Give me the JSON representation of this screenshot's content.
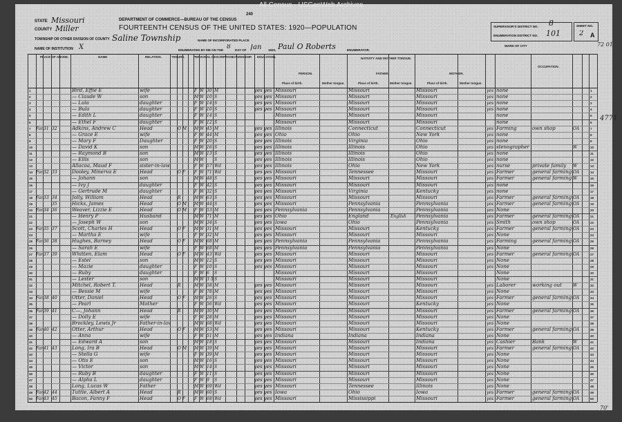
{
  "watermark": "All Census - USGenWeb Archives",
  "header": {
    "state_label": "STATE",
    "state": "Missouri",
    "county_label": "COUNTY",
    "county": "Miller",
    "township_label": "TOWNSHIP OR OTHER DIVISION OF COUNTY",
    "township": "Saline Township",
    "institution_label": "NAME OF INSTITUTION",
    "institution": "X",
    "form_number": "240",
    "department": "DEPARTMENT OF COMMERCE—BUREAU OF THE CENSUS",
    "title": "FOURTEENTH CENSUS OF THE UNITED STATES: 1920—POPULATION",
    "incorporated_place_label": "NAME OF INCORPORATED PLACE",
    "enumerated_label": "ENUMERATED BY ME ON THE",
    "enumerated_day": "8",
    "day_of_label": "DAY OF",
    "enumerated_month": "Jan",
    "year_label": "1920,",
    "enumerator": "Paul O Roberts",
    "enumerator_label": "ENUMERATOR.",
    "supervisor_label": "SUPERVISOR'S DISTRICT NO.",
    "supervisor_district": "8",
    "enumeration_label": "ENUMERATION DISTRICT NO.",
    "enumeration_district": "101",
    "sheet_label": "SHEET NO.",
    "sheet": "2",
    "sheet_side": "A",
    "ward_label": "WARD OF CITY",
    "ward_note": "72 01"
  },
  "columns": {
    "place_of_abode": "PLACE OF ABODE.",
    "name": "NAME",
    "relation": "RELATION.",
    "tenure": "TENURE.",
    "personal": "PERSONAL DESCRIPTION.",
    "citizenship": "CITIZENSHIP.",
    "education": "EDUCATION.",
    "nativity": "NATIVITY AND MOTHER TONGUE.",
    "person": "PERSON.",
    "father": "FATHER.",
    "mother": "MOTHER.",
    "place_of_birth": "Place of birth.",
    "mother_tongue": "Mother tongue.",
    "occupation": "OCCUPATION."
  },
  "rows": [
    [
      "",
      "",
      "",
      "Bird, Effie E",
      "wife",
      "",
      "F",
      "W",
      "30",
      "M",
      "yes yes",
      "Missouri",
      "",
      "Missouri",
      "Missouri",
      "yes",
      "none",
      "",
      ""
    ],
    [
      "",
      "",
      "",
      "— Claude W",
      "son",
      "",
      "M",
      "W",
      "10",
      "S",
      "yes yes",
      "Missouri",
      "",
      "Missouri",
      "Missouri",
      "yes",
      "none",
      "",
      ""
    ],
    [
      "",
      "",
      "",
      "— Lula",
      "daughter",
      "",
      "F",
      "W",
      "14",
      "S",
      "yes yes",
      "Missouri",
      "",
      "Missouri",
      "Missouri",
      "yes",
      "none",
      "",
      ""
    ],
    [
      "",
      "",
      "",
      "— Bula",
      "daughter",
      "",
      "F",
      "W",
      "10",
      "S",
      "yes yes",
      "Missouri",
      "",
      "Missouri",
      "Missouri",
      "yes",
      "none",
      "",
      ""
    ],
    [
      "",
      "",
      "",
      "— Edith L",
      "daughter",
      "",
      "F",
      "W",
      "14",
      "S",
      "",
      "Missouri",
      "",
      "Missouri",
      "Missouri",
      "",
      "none",
      "",
      ""
    ],
    [
      "",
      "",
      "",
      "— Ethel F",
      "daughter",
      "",
      "F",
      "W",
      "12",
      "S",
      "",
      "Missouri",
      "",
      "Missouri",
      "Missouri",
      "",
      "none",
      "",
      ""
    ],
    [
      "Farm",
      "31",
      "32",
      "Adkins, Andrew C",
      "Head",
      "O M",
      "M",
      "W",
      "45",
      "M",
      "yes yes",
      "Illinois",
      "",
      "Connecticut",
      "Connecticut",
      "yes",
      "Farming",
      "own shop",
      "OA"
    ],
    [
      "",
      "",
      "",
      "— Grace E",
      "wife",
      "",
      "F",
      "W",
      "44",
      "M",
      "yes yes",
      "Ohio",
      "",
      "Ohio",
      "New York",
      "yes",
      "none",
      "",
      ""
    ],
    [
      "",
      "",
      "",
      "— Mary F",
      "Daughter",
      "",
      "F",
      "W",
      "20",
      "S",
      "yes yes",
      "Illinois",
      "",
      "Virginia",
      "Ohio",
      "yes",
      "none",
      "",
      ""
    ],
    [
      "",
      "",
      "",
      "— David K",
      "son",
      "",
      "M",
      "W",
      "16",
      "S",
      "yes yes",
      "Illinois",
      "",
      "Illinois",
      "Ohio",
      "yes",
      "stenographer",
      "",
      "W"
    ],
    [
      "",
      "",
      "",
      "— Raymond B",
      "son",
      "",
      "M",
      "W",
      "13",
      "S",
      "yes yes",
      "Illinois",
      "",
      "Illinois",
      "Ohio",
      "yes",
      "none",
      "",
      ""
    ],
    [
      "",
      "",
      "",
      "— Ellis",
      "son",
      "",
      "M",
      "W",
      "",
      "S",
      "yes yes",
      "Illinois",
      "",
      "Illinois",
      "Ohio",
      "yes",
      "none",
      "",
      ""
    ],
    [
      "",
      "",
      "",
      "Allacoa, Maud F",
      "sister-in-law",
      "",
      "F",
      "W",
      "57",
      "Wd",
      "yes yes",
      "Illinois",
      "",
      "Ohio",
      "New York",
      "yes",
      "nurse",
      "private family",
      "W"
    ],
    [
      "Farm",
      "32",
      "33",
      "Dooley, Minerva E",
      "Head",
      "O F",
      "F",
      "W",
      "71",
      "Wd",
      "yes yes",
      "Missouri",
      "",
      "Tennessee",
      "Missouri",
      "yes",
      "Farmer",
      "general farming",
      "OA"
    ],
    [
      "",
      "",
      "",
      "— Johann",
      "son",
      "",
      "M",
      "W",
      "48",
      "S",
      "yes yes",
      "Missouri",
      "",
      "Missouri",
      "Missouri",
      "yes",
      "Farmer",
      "general farming",
      "W"
    ],
    [
      "",
      "",
      "",
      "— Ivy J",
      "daughter",
      "",
      "F",
      "W",
      "42",
      "S",
      "yes yes",
      "Missouri",
      "",
      "Missouri",
      "Missouri",
      "yes",
      "none",
      "",
      ""
    ],
    [
      "",
      "",
      "",
      "— Gertrude M",
      "daughter",
      "",
      "F",
      "W",
      "32",
      "S",
      "yes yes",
      "Missouri",
      "",
      "Virginia",
      "Kentucky",
      "yes",
      "none",
      "",
      ""
    ],
    [
      "Farm",
      "33",
      "34",
      "Jolly, William",
      "Head",
      "R",
      "M",
      "W",
      "63",
      "S",
      "yes yes",
      "Missouri",
      "",
      "Missouri",
      "Missouri",
      "yes",
      "Farmer",
      "general farming",
      "OA"
    ],
    [
      "",
      "",
      "35",
      "Hicks, James",
      "Head",
      "O M",
      "M",
      "W",
      "44",
      "S",
      "yes yes",
      "Missouri",
      "",
      "Pennsylvania",
      "Pennsylvania",
      "yes",
      "Farmer",
      "general farming",
      "OA"
    ],
    [
      "Farm",
      "34",
      "36",
      "Weaver, Lizzie E",
      "Head",
      "O M",
      "F",
      "W",
      "53",
      "M",
      "yes yes",
      "Pennsylvania",
      "",
      "Pennsylvania",
      "Pennsylvania",
      "yes",
      "None",
      "",
      ""
    ],
    [
      "",
      "",
      "",
      "— Henry P",
      "Husband",
      "",
      "M",
      "W",
      "71",
      "M",
      "yes yes",
      "Ohio",
      "",
      "England",
      "Pennsylvania",
      "yes",
      "Farmer",
      "general farming",
      "OA"
    ],
    [
      "",
      "",
      "",
      "— Joseph W",
      "son",
      "",
      "M",
      "W",
      "34",
      "S",
      "yes yes",
      "Iowa",
      "",
      "Ohio",
      "Pennsylvania",
      "yes",
      "Smith",
      "own shop",
      "OA"
    ],
    [
      "Farm",
      "35",
      "37",
      "Scott, Charles H",
      "Head",
      "O F",
      "M",
      "W",
      "31",
      "M",
      "yes yes",
      "Missouri",
      "",
      "Missouri",
      "Kentucky",
      "yes",
      "Farmer",
      "general farming",
      "OA"
    ],
    [
      "",
      "",
      "",
      "— Martha E",
      "wife",
      "",
      "F",
      "W",
      "32",
      "M",
      "yes yes",
      "Missouri",
      "",
      "Missouri",
      "Missouri",
      "yes",
      "None",
      "",
      ""
    ],
    [
      "Farm",
      "36",
      "38",
      "Hughes, Barney",
      "Head",
      "O F",
      "M",
      "W",
      "68",
      "M",
      "yes yes",
      "Pennsylvania",
      "",
      "Pennsylvania",
      "Pennsylvania",
      "yes",
      "Farming",
      "general farming",
      "OA"
    ],
    [
      "",
      "",
      "",
      "— Sarah E",
      "wife",
      "",
      "F",
      "W",
      "68",
      "M",
      "yes yes",
      "Pennsylvania",
      "",
      "Pennsylvania",
      "Pennsylvania",
      "yes",
      "None",
      "",
      ""
    ],
    [
      "Farm",
      "37",
      "39",
      "Whitten, Elam",
      "Head",
      "O F",
      "M",
      "W",
      "43",
      "Wd",
      "yes yes",
      "Missouri",
      "",
      "Missouri",
      "Missouri",
      "yes",
      "Farmer",
      "general farming",
      "OA"
    ],
    [
      "",
      "",
      "",
      "— Estel",
      "son",
      "",
      "M",
      "W",
      "12",
      "S",
      "yes yes",
      "Missouri",
      "",
      "Missouri",
      "Missouri",
      "yes",
      "None",
      "",
      ""
    ],
    [
      "",
      "",
      "",
      "— Mazie",
      "daughter",
      "",
      "F",
      "W",
      "10",
      "S",
      "yes yes",
      "Missouri",
      "",
      "Missouri",
      "Missouri",
      "yes",
      "None",
      "",
      ""
    ],
    [
      "",
      "",
      "",
      "— Ruby",
      "daughter",
      "",
      "F",
      "W",
      "6",
      "S",
      "",
      "Missouri",
      "",
      "Missouri",
      "Missouri",
      "",
      "None",
      "",
      ""
    ],
    [
      "",
      "",
      "",
      "— Lester",
      "son",
      "",
      "M",
      "W",
      "3 5/12",
      "S",
      "",
      "Missouri",
      "",
      "Missouri",
      "Missouri",
      "",
      "None",
      "",
      ""
    ],
    [
      "",
      "",
      "",
      "Mitchel, Robert T.",
      "Head",
      "R",
      "M",
      "W",
      "58",
      "M",
      "yes yes",
      "Missouri",
      "",
      "Missouri",
      "Missouri",
      "yes",
      "Laborer",
      "working out",
      "W"
    ],
    [
      "",
      "",
      "",
      "— Bessie M",
      "wife",
      "",
      "F",
      "W",
      "78",
      "M",
      "yes yes",
      "Missouri",
      "",
      "Missouri",
      "Missouri",
      "yes",
      "None",
      "",
      ""
    ],
    [
      "Farm",
      "38",
      "40",
      "Otter, Daniel",
      "Head",
      "O F",
      "M",
      "W",
      "26",
      "S",
      "yes yes",
      "Missouri",
      "",
      "Missouri",
      "Missouri",
      "yes",
      "Farmer",
      "general farming",
      "OA"
    ],
    [
      "",
      "",
      "",
      "— Pearl",
      "Mother",
      "",
      "F",
      "W",
      "56",
      "Wd",
      "yes yes",
      "Missouri",
      "",
      "Missouri",
      "Kentucky",
      "yes",
      "None",
      "",
      ""
    ],
    [
      "Farm",
      "39",
      "41",
      "C—, Johann",
      "Head",
      "R",
      "M",
      "W",
      "30",
      "M",
      "yes yes",
      "Missouri",
      "",
      "Missouri",
      "Missouri",
      "yes",
      "Farmer",
      "general farming",
      "OA"
    ],
    [
      "",
      "",
      "",
      "— Dolly E",
      "wife",
      "",
      "F",
      "W",
      "28",
      "M",
      "yes yes",
      "Missouri",
      "",
      "Missouri",
      "Missouri",
      "yes",
      "None",
      "",
      ""
    ],
    [
      "",
      "",
      "",
      "Brockley, Lewis Jr",
      "Father-in-law",
      "",
      "M",
      "W",
      "68",
      "Wd",
      "yes yes",
      "Missouri",
      "",
      "Missouri",
      "Missouri",
      "yes",
      "None",
      "",
      ""
    ],
    [
      "Farm",
      "40",
      "42",
      "Otter, Arthur",
      "Head",
      "O F",
      "M",
      "W",
      "53",
      "M",
      "yes yes",
      "Missouri",
      "",
      "Missouri",
      "Kentucky",
      "yes",
      "Farmer",
      "general farming",
      "OA"
    ],
    [
      "",
      "",
      "",
      "— Anna",
      "wife",
      "",
      "F",
      "W",
      "51",
      "M",
      "yes yes",
      "Indiana",
      "",
      "Indiana",
      "Indiana",
      "yes",
      "None",
      "",
      ""
    ],
    [
      "",
      "",
      "",
      "— Edward A",
      "son",
      "",
      "M",
      "W",
      "18",
      "S",
      "yes yes",
      "Missouri",
      "",
      "Missouri",
      "Indiana",
      "yes",
      "Cashier",
      "Bank",
      "W"
    ],
    [
      "Farm",
      "41",
      "43",
      "Long, Ira B",
      "Head",
      "O M",
      "M",
      "W",
      "39",
      "M",
      "yes yes",
      "Missouri",
      "",
      "Missouri",
      "Missouri",
      "yes",
      "Farmer",
      "general farming",
      "OA"
    ],
    [
      "",
      "",
      "",
      "— Stella G",
      "wife",
      "",
      "F",
      "W",
      "39",
      "M",
      "yes yes",
      "Missouri",
      "",
      "Missouri",
      "Missouri",
      "yes",
      "None",
      "",
      ""
    ],
    [
      "",
      "",
      "",
      "— Otis E",
      "son",
      "",
      "M",
      "W",
      "16",
      "S",
      "yes yes",
      "Missouri",
      "",
      "Missouri",
      "Missouri",
      "yes",
      "None",
      "",
      ""
    ],
    [
      "",
      "",
      "",
      "— Victor",
      "son",
      "",
      "M",
      "W",
      "14",
      "S",
      "yes yes",
      "Missouri",
      "",
      "Missouri",
      "Missouri",
      "yes",
      "None",
      "",
      ""
    ],
    [
      "",
      "",
      "",
      "— Ruby B",
      "daughter",
      "",
      "F",
      "W",
      "11",
      "S",
      "yes yes",
      "Missouri",
      "",
      "Missouri",
      "Missouri",
      "yes",
      "None",
      "",
      ""
    ],
    [
      "",
      "",
      "",
      "— Alpha L",
      "daughter",
      "",
      "F",
      "W",
      "9",
      "S",
      "yes yes",
      "Missouri",
      "",
      "Missouri",
      "Missouri",
      "yes",
      "None",
      "",
      ""
    ],
    [
      "",
      "",
      "",
      "Long, Lucas W",
      "Father",
      "",
      "M",
      "W",
      "69",
      "Wd",
      "yes yes",
      "Missouri",
      "",
      "Tennessee",
      "Illinois",
      "yes",
      "None",
      "",
      ""
    ],
    [
      "Farm",
      "42",
      "44",
      "Tuttle, Albert A",
      "Head",
      "R",
      "M",
      "W",
      "60",
      "S",
      "yes yes",
      "Iowa",
      "",
      "Ohio",
      "Iowa",
      "yes",
      "Farmer",
      "general farming",
      "OA"
    ],
    [
      "Farm",
      "43",
      "45",
      "Bacon, Fanny F",
      "Head",
      "O F",
      "F",
      "W",
      "68",
      "Wd",
      "yes yes",
      "Missouri",
      "",
      "Mississippi",
      "Missouri",
      "yes",
      "Farmer",
      "general farming",
      "OA"
    ]
  ],
  "english_note": "English",
  "margin_notes": [
    "4771",
    "70'"
  ]
}
